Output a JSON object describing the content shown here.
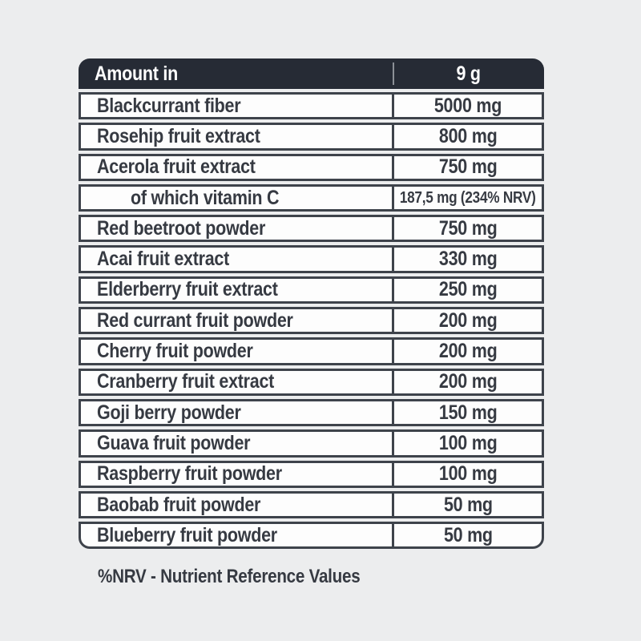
{
  "page": {
    "background_color": "#ecedee"
  },
  "table": {
    "header": {
      "col1": "Amount in",
      "col2": "9 g"
    },
    "rows": [
      {
        "label": "Blackcurrant fiber",
        "value": "5000 mg",
        "indent": false
      },
      {
        "label": "Rosehip fruit extract",
        "value": "800 mg",
        "indent": false
      },
      {
        "label": "Acerola fruit extract",
        "value": "750 mg",
        "indent": false
      },
      {
        "label": "of which vitamin C",
        "value": "187,5 mg (234% NRV)",
        "indent": true
      },
      {
        "label": "Red beetroot powder",
        "value": "750 mg",
        "indent": false
      },
      {
        "label": "Acai fruit extract",
        "value": "330 mg",
        "indent": false
      },
      {
        "label": "Elderberry fruit extract",
        "value": "250 mg",
        "indent": false
      },
      {
        "label": "Red currant fruit powder",
        "value": "200 mg",
        "indent": false
      },
      {
        "label": "Cherry fruit powder",
        "value": "200 mg",
        "indent": false
      },
      {
        "label": "Cranberry fruit extract",
        "value": "200 mg",
        "indent": false
      },
      {
        "label": "Goji berry powder",
        "value": "150 mg",
        "indent": false
      },
      {
        "label": "Guava fruit powder",
        "value": "100 mg",
        "indent": false
      },
      {
        "label": "Raspberry fruit powder",
        "value": "100 mg",
        "indent": false
      },
      {
        "label": "Baobab fruit powder",
        "value": "50 mg",
        "indent": false
      },
      {
        "label": "Blueberry fruit powder",
        "value": "50 mg",
        "indent": false
      }
    ],
    "colors": {
      "header_bg": "#262b35",
      "header_text": "#ffffff",
      "border": "#3e434b",
      "text": "#363a42",
      "row_bg": "#fdfdfd",
      "header_divider": "#8c9097"
    }
  },
  "footnote": "%NRV - Nutrient Reference Values"
}
